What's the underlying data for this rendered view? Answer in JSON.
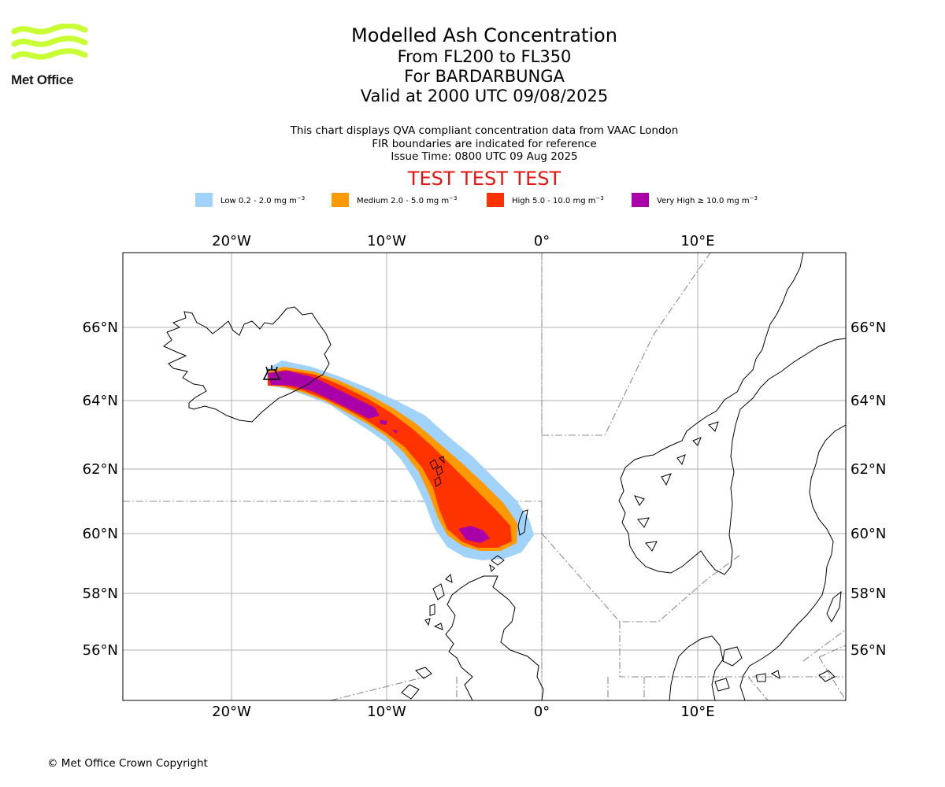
{
  "logo": {
    "text": "Met Office",
    "color": "#c8ff32"
  },
  "titles": {
    "main": "Modelled Ash Concentration",
    "levels": "From FL200 to FL350",
    "volcano": "For BARDARBUNGA",
    "valid": "Valid at 2000 UTC 09/08/2025"
  },
  "subtitle": {
    "line1": "This chart displays QVA compliant concentration data from VAAC London",
    "line2": "FIR boundaries are indicated for reference",
    "line3": "Issue Time: 0800 UTC 09 Aug 2025"
  },
  "test_banner": {
    "text": "TEST TEST TEST",
    "color": "#e8140f"
  },
  "legend": [
    {
      "label": "Low 0.2 - 2.0 mg m",
      "exp": "−3",
      "color": "#a0d2fa"
    },
    {
      "label": "Medium 2.0 - 5.0 mg m",
      "exp": "−3",
      "color": "#ff9900"
    },
    {
      "label": "High 5.0 - 10.0 mg m",
      "exp": "−3",
      "color": "#ff3300"
    },
    {
      "label": "Very High ≥ 10.0 mg m",
      "exp": "−3",
      "color": "#aa00aa"
    }
  ],
  "map": {
    "lon_labels": [
      "20°W",
      "10°W",
      "0°",
      "10°E"
    ],
    "lat_labels": [
      "66°N",
      "64°N",
      "62°N",
      "60°N",
      "58°N",
      "56°N"
    ],
    "volcano_symbol": "volcano-icon"
  },
  "footer": {
    "copyright": "© Met Office Crown Copyright"
  }
}
